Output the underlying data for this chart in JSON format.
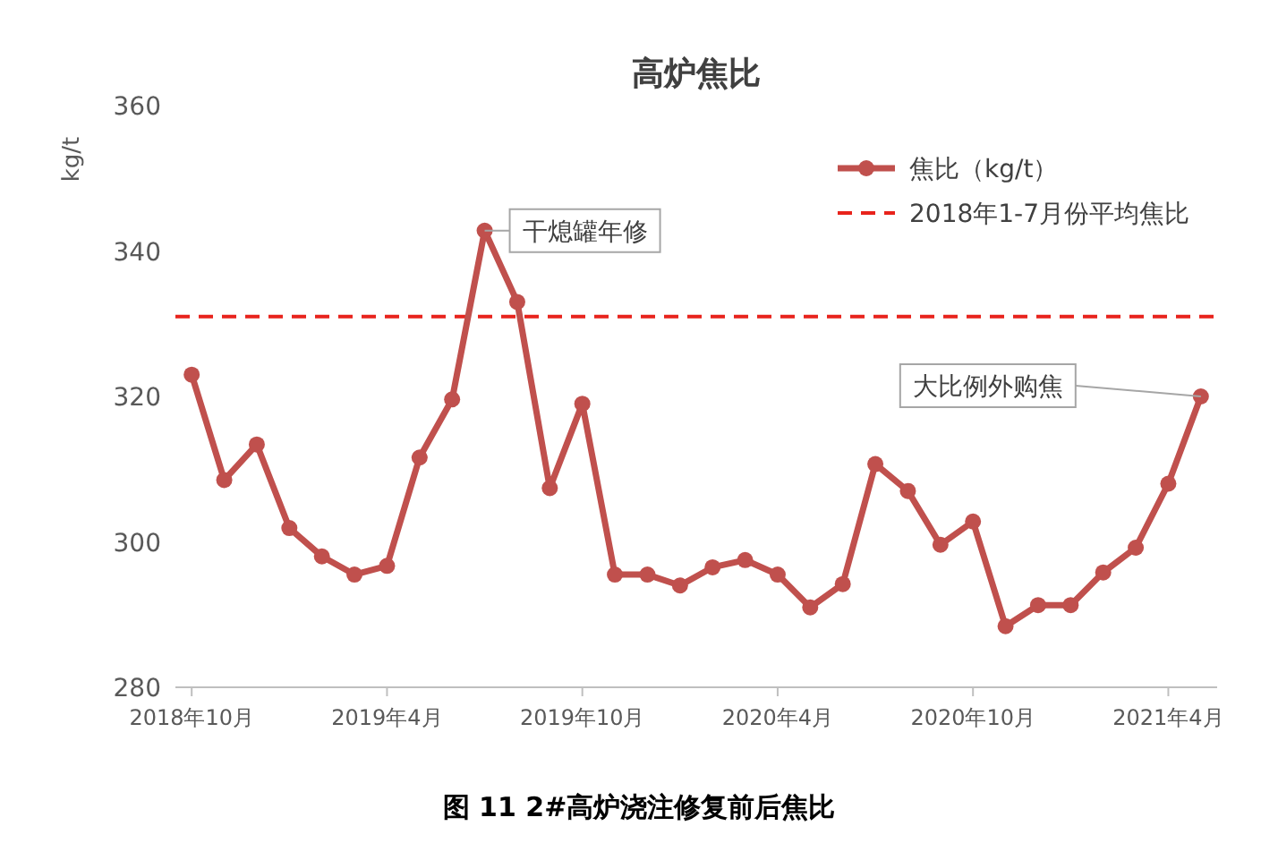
{
  "chart_data": {
    "type": "line",
    "title": "高炉焦比",
    "ylabel": "kg/t",
    "x": [
      "2018-10",
      "2018-11",
      "2018-12",
      "2019-01",
      "2019-02",
      "2019-03",
      "2019-04",
      "2019-05",
      "2019-06",
      "2019-07",
      "2019-08",
      "2019-09",
      "2019-10",
      "2019-11",
      "2019-12",
      "2020-01",
      "2020-02",
      "2020-03",
      "2020-04",
      "2020-05",
      "2020-06",
      "2020-07",
      "2020-08",
      "2020-09",
      "2020-10",
      "2020-11",
      "2020-12",
      "2021-01",
      "2021-02",
      "2021-03",
      "2021-04",
      "2021-05"
    ],
    "series": [
      {
        "name": "焦比（kg/t）",
        "color": "#c0504d",
        "marker": "circle",
        "line_style": "solid",
        "values": [
          323,
          308.5,
          313.4,
          301.9,
          298,
          295.5,
          296.7,
          311.6,
          319.6,
          342.8,
          333,
          307.4,
          319,
          295.5,
          295.5,
          294,
          296.5,
          297.5,
          295.5,
          291,
          294.2,
          310.7,
          307,
          299.6,
          302.8,
          288.4,
          291.3,
          291.3,
          295.8,
          299.2,
          308,
          320
        ]
      }
    ],
    "ref_lines": [
      {
        "axis": "y",
        "value": 331,
        "label": "2018年1-7月份平均焦比",
        "color": "#e8231c",
        "line_style": "dashed"
      }
    ],
    "ylim": [
      280,
      360
    ],
    "yticks": [
      280,
      300,
      320,
      340,
      360
    ],
    "xlim": [
      "2018-09-16",
      "2021-05-16"
    ],
    "xticks": [
      {
        "value": "2018-10",
        "label": "2018年10月"
      },
      {
        "value": "2019-04",
        "label": "2019年4月"
      },
      {
        "value": "2019-10",
        "label": "2019年10月"
      },
      {
        "value": "2020-04",
        "label": "2020年4月"
      },
      {
        "value": "2020-10",
        "label": "2020年10月"
      },
      {
        "value": "2021-04",
        "label": "2021年4月"
      }
    ],
    "grid": false,
    "legend": "top right",
    "annotations": [
      {
        "text": "干熄罐年修",
        "x": "2019-07",
        "y": 342.8
      },
      {
        "text": "大比例外购焦",
        "x": "2021-05",
        "y": 320
      },
      "图 11 2#高炉浇注修复前后焦比"
    ]
  }
}
